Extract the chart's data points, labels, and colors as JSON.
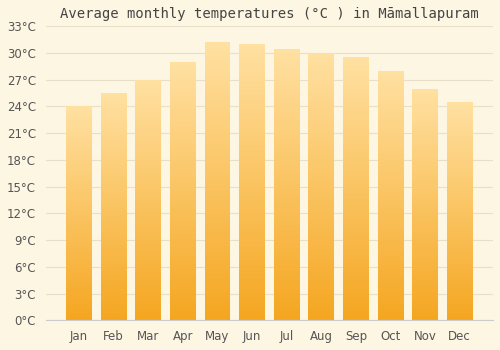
{
  "title": "Average monthly temperatures (°C ) in Māmallapuram",
  "months": [
    "Jan",
    "Feb",
    "Mar",
    "Apr",
    "May",
    "Jun",
    "Jul",
    "Aug",
    "Sep",
    "Oct",
    "Nov",
    "Dec"
  ],
  "values": [
    24.0,
    25.5,
    27.0,
    29.0,
    31.2,
    31.0,
    30.5,
    30.0,
    29.5,
    28.0,
    26.0,
    24.5
  ],
  "ylim": [
    0,
    33
  ],
  "yticks": [
    0,
    3,
    6,
    9,
    12,
    15,
    18,
    21,
    24,
    27,
    30,
    33
  ],
  "background_color": "#fdf6e3",
  "grid_color": "#e8dfc8",
  "bar_color_bottom": "#F5A623",
  "bar_color_top": "#FFE0A0",
  "title_fontsize": 10,
  "tick_fontsize": 8.5,
  "bar_width": 0.75
}
